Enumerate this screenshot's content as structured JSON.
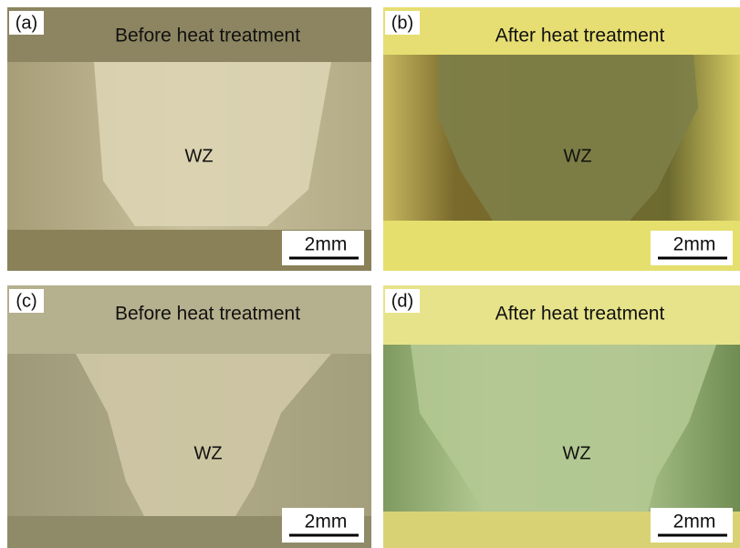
{
  "panels": [
    {
      "label": "(a)",
      "title": "Before heat treatment",
      "region": "WZ",
      "scale": "2mm"
    },
    {
      "label": "(b)",
      "title": "After heat treatment",
      "region": "WZ",
      "scale": "2mm"
    },
    {
      "label": "(c)",
      "title": "Before heat treatment",
      "region": "WZ",
      "scale": "2mm"
    },
    {
      "label": "(d)",
      "title": "After heat treatment",
      "region": "WZ",
      "scale": "2mm"
    }
  ]
}
